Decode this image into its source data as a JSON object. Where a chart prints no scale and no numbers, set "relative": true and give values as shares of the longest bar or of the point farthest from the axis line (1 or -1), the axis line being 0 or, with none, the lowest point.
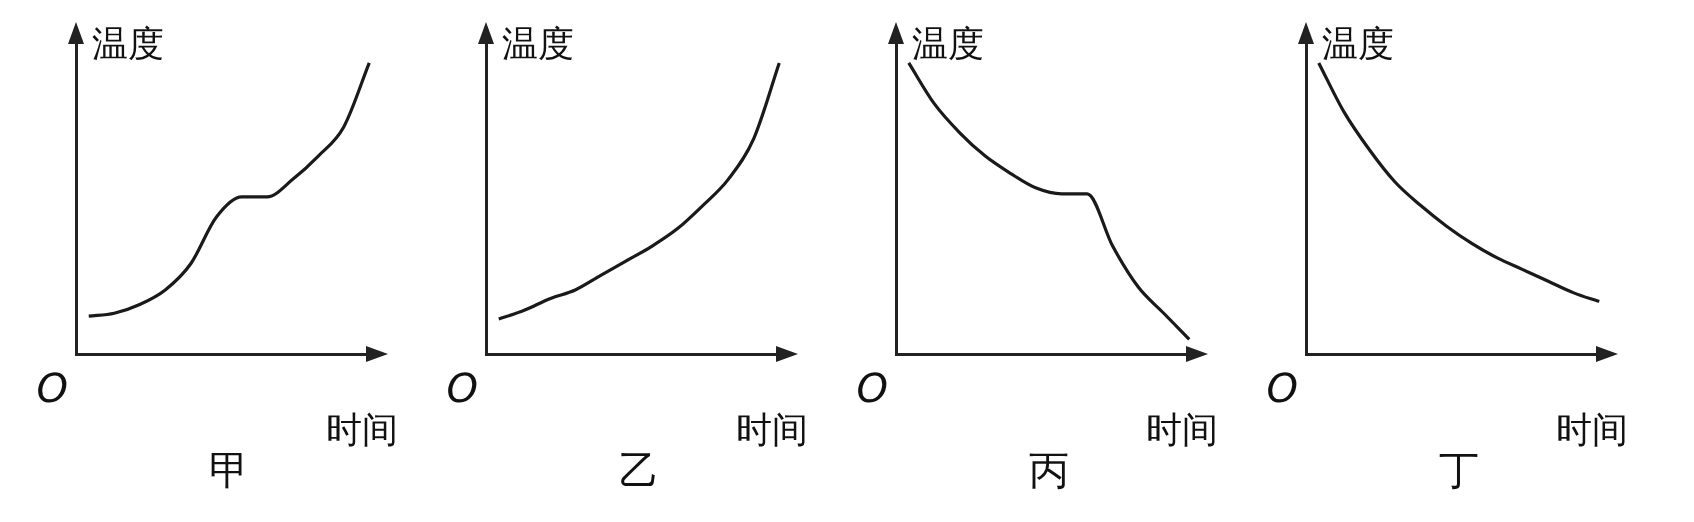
{
  "chart_data": [
    {
      "type": "line",
      "title": "甲",
      "xlabel": "时间",
      "ylabel": "温度",
      "annotations": [
        "O"
      ],
      "relative": true,
      "marker": "none",
      "color": "#1a1a1a",
      "categories": [
        null,
        null,
        null,
        null,
        null,
        null,
        null,
        null,
        null,
        null,
        null,
        null
      ],
      "values": [
        0.13,
        0.14,
        0.17,
        0.22,
        0.31,
        0.47,
        0.54,
        0.54,
        0.6,
        0.68,
        0.78,
        1
      ]
    },
    {
      "type": "line",
      "title": "乙",
      "xlabel": "时间",
      "ylabel": "温度",
      "annotations": [
        "O"
      ],
      "relative": true,
      "marker": "none",
      "color": "#1a1a1a",
      "categories": [
        null,
        null,
        null,
        null,
        null,
        null,
        null,
        null,
        null,
        null,
        null,
        null
      ],
      "values": [
        0.12,
        0.15,
        0.19,
        0.22,
        0.27,
        0.32,
        0.37,
        0.43,
        0.51,
        0.6,
        0.74,
        1
      ]
    },
    {
      "type": "line",
      "title": "丙",
      "xlabel": "时间",
      "ylabel": "温度",
      "annotations": [
        "O"
      ],
      "relative": true,
      "marker": "none",
      "color": "#1a1a1a",
      "categories": [
        null,
        null,
        null,
        null,
        null,
        null,
        null,
        null,
        null,
        null,
        null,
        null
      ],
      "values": [
        1,
        0.86,
        0.76,
        0.68,
        0.62,
        0.57,
        0.55,
        0.55,
        0.37,
        0.23,
        0.14,
        0.05
      ]
    },
    {
      "type": "line",
      "title": "丁",
      "xlabel": "时间",
      "ylabel": "温度",
      "annotations": [
        "O"
      ],
      "relative": true,
      "marker": "none",
      "color": "#1a1a1a",
      "categories": [
        null,
        null,
        null,
        null,
        null,
        null,
        null,
        null,
        null,
        null,
        null,
        null
      ],
      "values": [
        1,
        0.83,
        0.7,
        0.59,
        0.51,
        0.44,
        0.38,
        0.33,
        0.29,
        0.25,
        0.21,
        0.18
      ]
    }
  ]
}
